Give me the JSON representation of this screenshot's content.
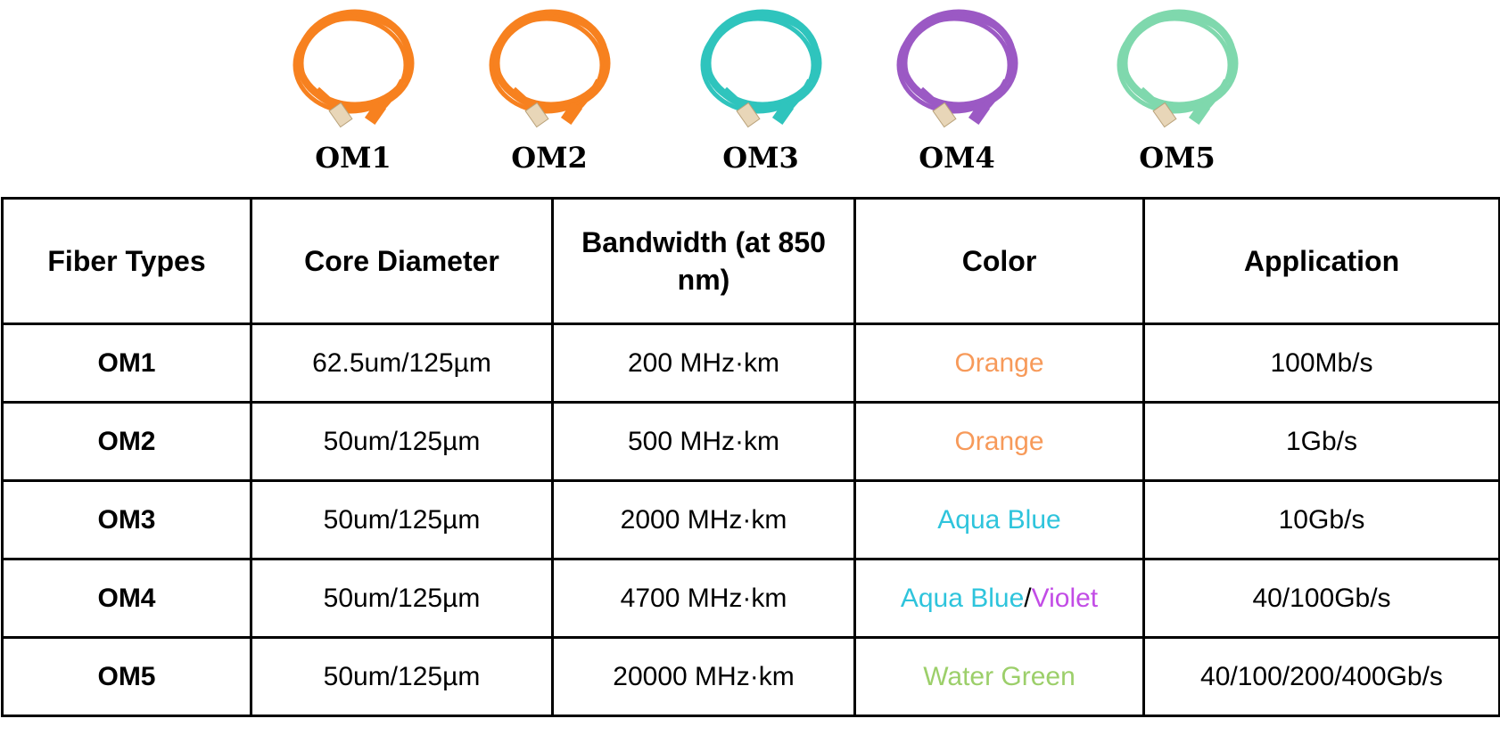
{
  "cables": [
    {
      "label": "OM1",
      "color": "#f7811f"
    },
    {
      "label": "OM2",
      "color": "#f7811f"
    },
    {
      "label": "OM3",
      "color": "#2fc4bd"
    },
    {
      "label": "OM4",
      "color": "#9b59c4"
    },
    {
      "label": "OM5",
      "color": "#7fd8ad"
    }
  ],
  "table": {
    "header": [
      "Fiber Types",
      "Core Diameter",
      "Bandwidth (at 850 nm)",
      "Color",
      "Application"
    ],
    "rows": [
      [
        "OM1",
        "62.5um/125µm",
        "200 MHz·km",
        [
          {
            "text": "Orange",
            "color": "#f79a5a"
          }
        ],
        "100Mb/s"
      ],
      [
        "OM2",
        "50um/125µm",
        "500 MHz·km",
        [
          {
            "text": "Orange",
            "color": "#f79a5a"
          }
        ],
        "1Gb/s"
      ],
      [
        "OM3",
        "50um/125µm",
        "2000 MHz·km",
        [
          {
            "text": "Aqua Blue",
            "color": "#2ec4dc"
          }
        ],
        "10Gb/s"
      ],
      [
        "OM4",
        "50um/125µm",
        "4700 MHz·km",
        [
          {
            "text": "Aqua Blue",
            "color": "#2ec4dc"
          },
          {
            "text": "/",
            "color": "#000000"
          },
          {
            "text": "Violet",
            "color": "#c24ce6"
          }
        ],
        "40/100Gb/s"
      ],
      [
        "OM5",
        "50um/125µm",
        "20000 MHz·km",
        [
          {
            "text": "Water Green",
            "color": "#9ccf6a"
          }
        ],
        "40/100/200/400Gb/s"
      ]
    ]
  }
}
